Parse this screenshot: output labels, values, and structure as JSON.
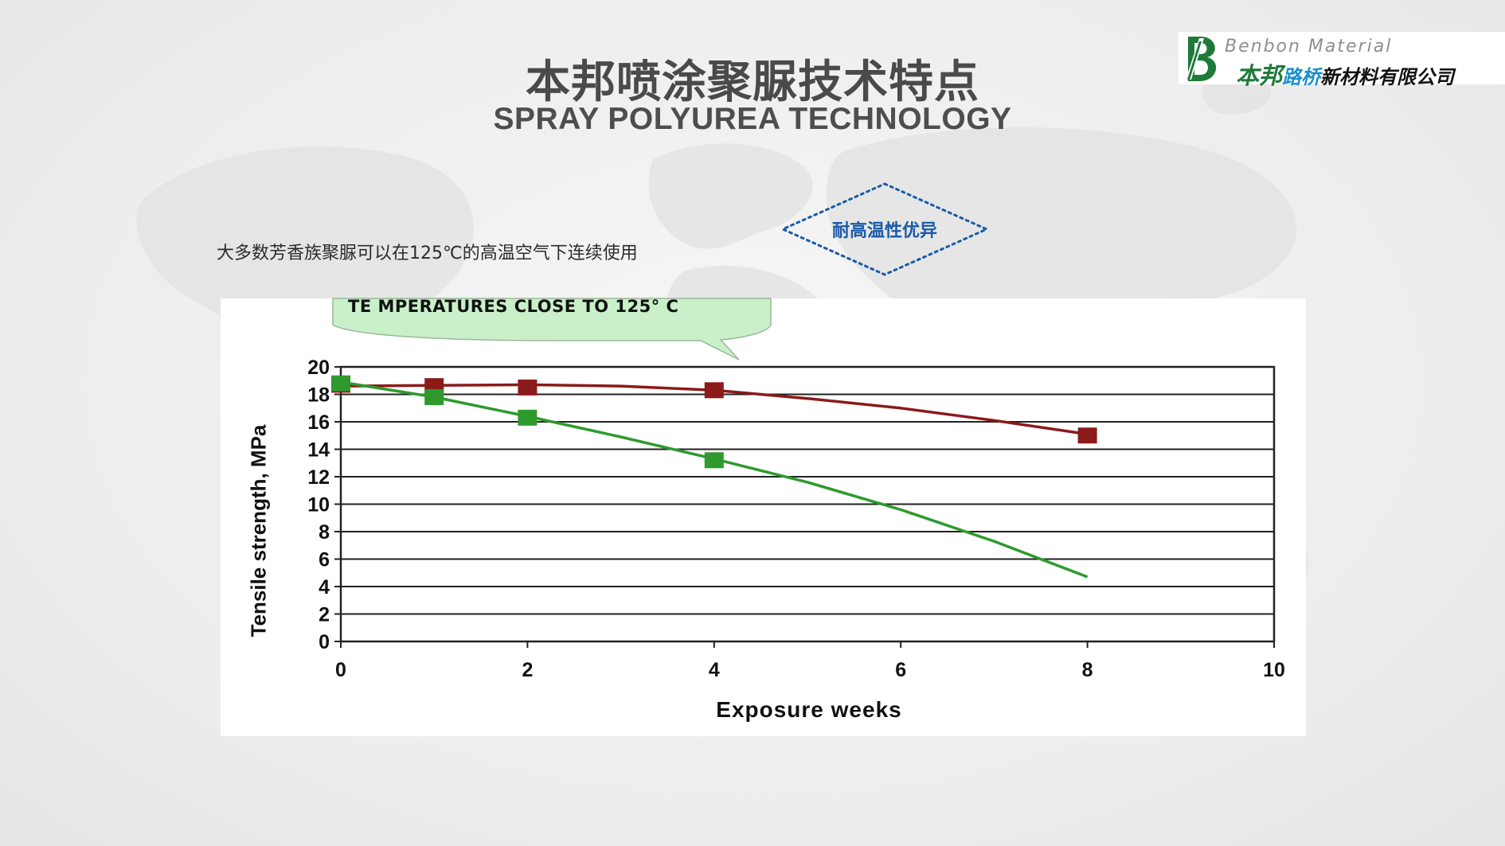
{
  "title_cn": "本邦喷涂聚脲技术特点",
  "title_en": "SPRAY POLYUREA TECHNOLOGY",
  "logo": {
    "en": "Benbon Material",
    "cn_part1": "本邦",
    "cn_part2": "路桥",
    "cn_part3": "新材料有限公司",
    "icon": "benbon-b-logo-icon",
    "colors": {
      "green": "#1f7a3a",
      "blue": "#1a8fd0"
    }
  },
  "description": "大多数芳香族聚脲可以在125℃的高温空气下连续使用",
  "badge": {
    "label": "耐高温性优异",
    "color": "#1a5aa8"
  },
  "chart_data": {
    "type": "line",
    "callout": "TE MPERATURES CLOSE TO 125°  C",
    "xlabel": "Exposure weeks",
    "ylabel": "Tensile strength, MPa",
    "xlim": [
      0,
      10
    ],
    "ylim": [
      0,
      20
    ],
    "x_ticks": [
      "0",
      "2",
      "4",
      "6",
      "8",
      "10"
    ],
    "y_ticks": [
      "0",
      "2",
      "4",
      "6",
      "8",
      "10",
      "12",
      "14",
      "16",
      "18",
      "20"
    ],
    "grid": "horizontal",
    "series": [
      {
        "color": "#8b1a1a",
        "points": [
          [
            0,
            18.7
          ],
          [
            1,
            18.6
          ],
          [
            2,
            18.5
          ],
          [
            4,
            18.3
          ],
          [
            8,
            15.0
          ]
        ],
        "curve": [
          [
            0,
            18.6
          ],
          [
            2,
            18.7
          ],
          [
            3,
            18.6
          ],
          [
            4,
            18.3
          ],
          [
            5,
            17.7
          ],
          [
            6,
            17.0
          ],
          [
            7,
            16.1
          ],
          [
            8,
            15.1
          ]
        ]
      },
      {
        "color": "#2e9a2e",
        "points": [
          [
            0,
            18.8
          ],
          [
            1,
            17.8
          ],
          [
            2,
            16.3
          ],
          [
            4,
            13.2
          ]
        ],
        "curve": [
          [
            0,
            18.9
          ],
          [
            1,
            17.8
          ],
          [
            2,
            16.4
          ],
          [
            3,
            14.9
          ],
          [
            4,
            13.3
          ],
          [
            5,
            11.6
          ],
          [
            6,
            9.6
          ],
          [
            7,
            7.3
          ],
          [
            8,
            4.7
          ]
        ]
      }
    ]
  }
}
